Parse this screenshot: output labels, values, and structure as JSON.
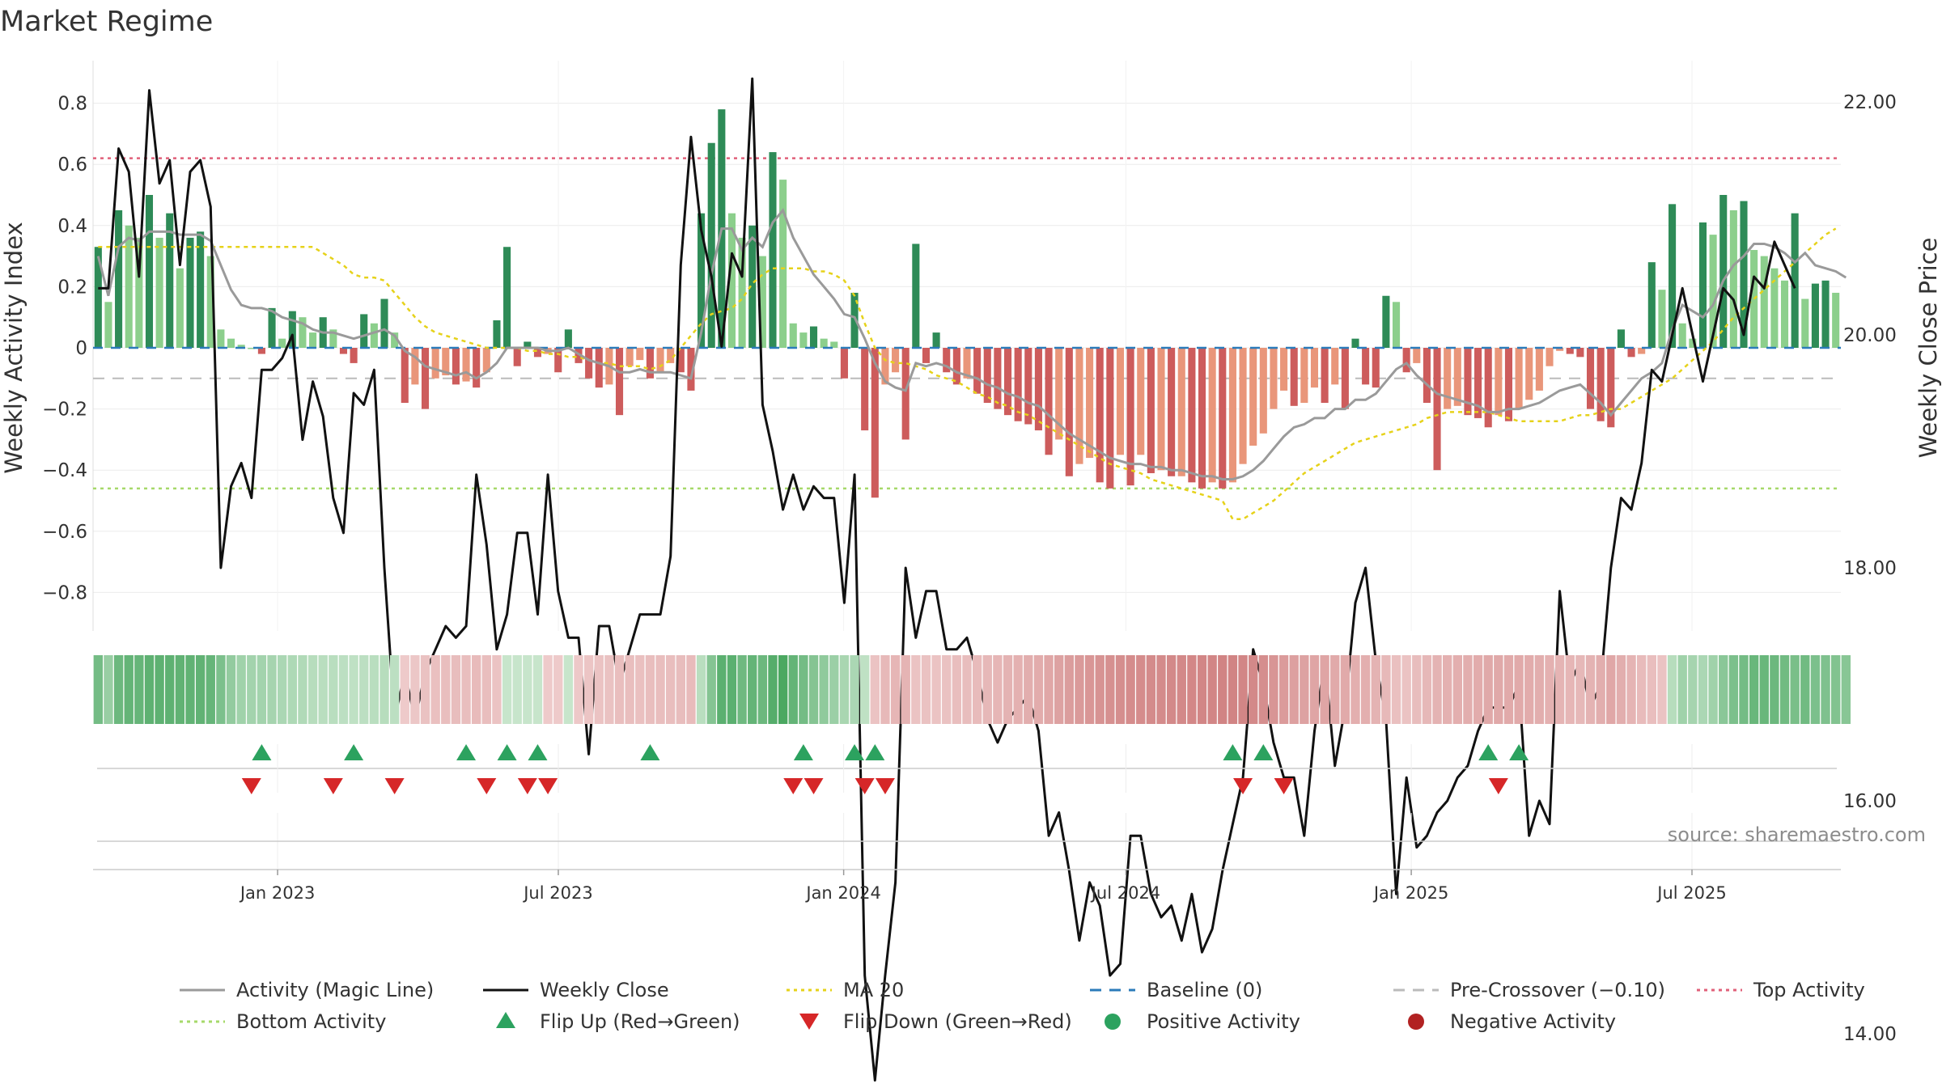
{
  "title": "Market Regime",
  "source": "source: sharemaestro.com",
  "colors": {
    "pos_dark": "#2e8b57",
    "pos_light": "#8ccf8c",
    "neg_dark": "#cd5c5c",
    "neg_light": "#e9967a",
    "magic": "#9a9a9a",
    "close": "#111111",
    "ma20": "#e6d21a",
    "baseline": "#2b7bba",
    "precross": "#bbbbbb",
    "top": "#e0607a",
    "bottom": "#a6d96a",
    "flip_up": "#2ca25f",
    "flip_down": "#d62728"
  },
  "chart_data": {
    "type": "bar",
    "ylabel": "Weekly Activity Index",
    "y2label": "Weekly Close Price",
    "ylim": [
      -0.93,
      0.93
    ],
    "y2lim": [
      13.0,
      23.0
    ],
    "yticks": [
      0.8,
      0.6,
      0.4,
      0.2,
      0,
      -0.2,
      -0.4,
      -0.6,
      -0.8
    ],
    "ytick_labels": [
      "0.8",
      "0.6",
      "0.4",
      "0.2",
      "0",
      "−0.2",
      "−0.4",
      "−0.6",
      "−0.8"
    ],
    "y2ticks": [
      22,
      20,
      18,
      16,
      14
    ],
    "y2tick_labels": [
      "22.00",
      "20.00",
      "18.00",
      "16.00",
      "14.00"
    ],
    "x_start": "2022-09-04",
    "x_end": "2025-10-05",
    "xticks": [
      "2023-01-01",
      "2023-07-01",
      "2024-01-01",
      "2024-07-01",
      "2025-01-01",
      "2025-07-01"
    ],
    "xtick_labels": [
      "Jan 2023",
      "Jul 2023",
      "Jan 2024",
      "Jul 2024",
      "Jan 2025",
      "Jul 2025"
    ],
    "levels": {
      "top": 0.62,
      "bottom": -0.46,
      "pre_crossover": -0.1,
      "baseline": 0
    },
    "grid": true,
    "legend_position": "bottom",
    "legend": [
      {
        "label": "Activity (Magic Line)",
        "style": "line",
        "color": "#9a9a9a"
      },
      {
        "label": "Weekly Close",
        "style": "line",
        "color": "#111111"
      },
      {
        "label": "MA 20",
        "style": "dotted",
        "color": "#e6d21a"
      },
      {
        "label": "Baseline (0)",
        "style": "dashed",
        "color": "#2b7bba"
      },
      {
        "label": "Pre-Crossover (−0.10)",
        "style": "dashed",
        "color": "#bbbbbb"
      },
      {
        "label": "Top Activity",
        "style": "dotted",
        "color": "#e0607a"
      },
      {
        "label": "Bottom Activity",
        "style": "dotted",
        "color": "#a6d96a"
      },
      {
        "label": "Flip Up (Red→Green)",
        "style": "tri-up",
        "color": "#2ca25f"
      },
      {
        "label": "Flip Down (Green→Red)",
        "style": "tri-down",
        "color": "#d62728"
      },
      {
        "label": "Positive Activity",
        "style": "dot",
        "color": "#2ca25f"
      },
      {
        "label": "Negative Activity",
        "style": "dot",
        "color": "#b22222"
      }
    ],
    "activity": [
      0.33,
      0.15,
      0.45,
      0.4,
      0.36,
      0.5,
      0.36,
      0.44,
      0.26,
      0.36,
      0.38,
      0.3,
      0.06,
      0.03,
      0.01,
      0.0,
      -0.02,
      0.13,
      0.03,
      0.12,
      0.1,
      0.05,
      0.1,
      0.06,
      -0.02,
      -0.05,
      0.11,
      0.08,
      0.16,
      0.05,
      -0.18,
      -0.12,
      -0.2,
      -0.1,
      -0.09,
      -0.12,
      -0.11,
      -0.13,
      -0.08,
      0.09,
      0.33,
      -0.06,
      0.02,
      -0.03,
      -0.02,
      -0.08,
      0.06,
      -0.05,
      -0.1,
      -0.13,
      -0.12,
      -0.22,
      -0.06,
      -0.04,
      -0.1,
      -0.08,
      -0.05,
      -0.08,
      -0.14,
      0.44,
      0.67,
      0.78,
      0.44,
      0.36,
      0.4,
      0.3,
      0.64,
      0.55,
      0.08,
      0.05,
      0.07,
      0.03,
      0.02,
      -0.1,
      0.18,
      -0.27,
      -0.49,
      -0.12,
      -0.08,
      -0.3,
      0.34,
      -0.05,
      0.05,
      -0.08,
      -0.12,
      -0.1,
      -0.15,
      -0.18,
      -0.2,
      -0.22,
      -0.24,
      -0.25,
      -0.27,
      -0.35,
      -0.3,
      -0.42,
      -0.38,
      -0.36,
      -0.44,
      -0.46,
      -0.35,
      -0.45,
      -0.35,
      -0.41,
      -0.4,
      -0.42,
      -0.42,
      -0.44,
      -0.46,
      -0.44,
      -0.46,
      -0.44,
      -0.38,
      -0.32,
      -0.28,
      -0.2,
      -0.14,
      -0.19,
      -0.18,
      -0.13,
      -0.18,
      -0.12,
      -0.2,
      0.03,
      -0.12,
      -0.13,
      0.17,
      0.15,
      -0.08,
      -0.05,
      -0.18,
      -0.4,
      -0.2,
      -0.19,
      -0.22,
      -0.23,
      -0.26,
      -0.22,
      -0.24,
      -0.2,
      -0.17,
      -0.14,
      -0.06,
      -0.01,
      -0.02,
      -0.03,
      -0.2,
      -0.24,
      -0.26,
      0.06,
      -0.03,
      -0.02,
      0.28,
      0.19,
      0.47,
      0.08,
      0.03,
      0.41,
      0.37,
      0.5,
      0.45,
      0.48,
      0.32,
      0.3,
      0.26,
      0.22,
      0.44,
      0.16,
      0.21,
      0.22,
      0.18
    ],
    "magic": [
      0.3,
      0.17,
      0.33,
      0.36,
      0.35,
      0.38,
      0.38,
      0.38,
      0.37,
      0.37,
      0.37,
      0.35,
      0.27,
      0.19,
      0.14,
      0.13,
      0.13,
      0.12,
      0.1,
      0.09,
      0.08,
      0.06,
      0.05,
      0.05,
      0.04,
      0.03,
      0.04,
      0.05,
      0.06,
      0.04,
      -0.01,
      -0.03,
      -0.06,
      -0.07,
      -0.08,
      -0.09,
      -0.08,
      -0.1,
      -0.08,
      -0.05,
      0.0,
      0.0,
      0.0,
      0.0,
      -0.01,
      -0.01,
      0.0,
      -0.02,
      -0.04,
      -0.05,
      -0.06,
      -0.08,
      -0.08,
      -0.07,
      -0.08,
      -0.08,
      -0.08,
      -0.09,
      -0.1,
      0.05,
      0.24,
      0.39,
      0.39,
      0.32,
      0.36,
      0.33,
      0.41,
      0.45,
      0.36,
      0.3,
      0.24,
      0.2,
      0.16,
      0.11,
      0.1,
      0.03,
      -0.05,
      -0.11,
      -0.13,
      -0.14,
      -0.05,
      -0.06,
      -0.05,
      -0.06,
      -0.08,
      -0.09,
      -0.1,
      -0.12,
      -0.13,
      -0.15,
      -0.16,
      -0.18,
      -0.19,
      -0.22,
      -0.25,
      -0.28,
      -0.3,
      -0.32,
      -0.34,
      -0.36,
      -0.37,
      -0.38,
      -0.38,
      -0.39,
      -0.39,
      -0.4,
      -0.4,
      -0.41,
      -0.42,
      -0.42,
      -0.43,
      -0.43,
      -0.42,
      -0.4,
      -0.37,
      -0.33,
      -0.29,
      -0.26,
      -0.25,
      -0.23,
      -0.23,
      -0.2,
      -0.2,
      -0.17,
      -0.17,
      -0.15,
      -0.11,
      -0.07,
      -0.05,
      -0.09,
      -0.12,
      -0.15,
      -0.16,
      -0.17,
      -0.18,
      -0.19,
      -0.21,
      -0.21,
      -0.2,
      -0.2,
      -0.19,
      -0.18,
      -0.16,
      -0.14,
      -0.13,
      -0.12,
      -0.15,
      -0.18,
      -0.22,
      -0.18,
      -0.14,
      -0.1,
      -0.08,
      -0.05,
      0.06,
      0.14,
      0.12,
      0.1,
      0.14,
      0.22,
      0.27,
      0.3,
      0.34,
      0.34,
      0.33,
      0.31,
      0.28,
      0.31,
      0.27,
      0.26,
      0.25,
      0.23
    ],
    "close": [
      20.4,
      20.4,
      21.6,
      21.4,
      20.5,
      22.1,
      21.3,
      21.5,
      20.6,
      21.4,
      21.5,
      21.1,
      18.0,
      18.7,
      18.9,
      18.6,
      19.7,
      19.7,
      19.8,
      20.0,
      19.1,
      19.6,
      19.3,
      18.6,
      18.3,
      19.5,
      19.4,
      19.7,
      18.0,
      16.7,
      17.1,
      16.7,
      17.1,
      17.3,
      17.5,
      17.4,
      17.5,
      18.8,
      18.2,
      17.3,
      17.6,
      18.3,
      18.3,
      17.6,
      18.8,
      17.8,
      17.4,
      17.4,
      16.4,
      17.5,
      17.5,
      17.0,
      17.3,
      17.6,
      17.6,
      17.6,
      18.1,
      20.6,
      21.7,
      20.9,
      20.5,
      19.9,
      20.7,
      20.5,
      22.2,
      19.4,
      19.0,
      18.5,
      18.8,
      18.5,
      18.7,
      18.6,
      18.6,
      17.7,
      18.8,
      14.5,
      13.6,
      14.5,
      15.3,
      18.0,
      17.4,
      17.8,
      17.8,
      17.3,
      17.3,
      17.4,
      17.1,
      16.7,
      16.5,
      16.7,
      16.8,
      16.9,
      16.6,
      15.7,
      15.9,
      15.4,
      14.8,
      15.3,
      15.1,
      14.5,
      14.6,
      15.7,
      15.7,
      15.2,
      15.0,
      15.1,
      14.8,
      15.2,
      14.7,
      14.9,
      15.4,
      15.8,
      16.2,
      17.3,
      17.0,
      16.5,
      16.2,
      16.2,
      15.7,
      16.6,
      17.2,
      16.3,
      16.8,
      17.7,
      18.0,
      17.2,
      16.7,
      15.2,
      16.2,
      15.6,
      15.7,
      15.9,
      16.0,
      16.2,
      16.3,
      16.6,
      16.8,
      16.8,
      16.8,
      17.0,
      15.7,
      16.0,
      15.8,
      17.8,
      17.0,
      17.2,
      16.8,
      17.0,
      18.0,
      18.6,
      18.5,
      18.9,
      19.7,
      19.6,
      20.0,
      20.4,
      20.0,
      19.6,
      20.0,
      20.4,
      20.3,
      20.0,
      20.5,
      20.4,
      20.8,
      20.6,
      20.4
    ],
    "ma20": [
      0.33,
      0.33,
      0.33,
      0.33,
      0.33,
      0.33,
      0.33,
      0.33,
      0.33,
      0.33,
      0.33,
      0.33,
      0.33,
      0.33,
      0.33,
      0.33,
      0.33,
      0.33,
      0.33,
      0.33,
      0.33,
      0.33,
      0.31,
      0.29,
      0.27,
      0.24,
      0.23,
      0.23,
      0.22,
      0.18,
      0.14,
      0.1,
      0.07,
      0.05,
      0.04,
      0.03,
      0.02,
      0.01,
      0.0,
      0.0,
      0.0,
      0.0,
      -0.01,
      -0.01,
      -0.02,
      -0.02,
      -0.03,
      -0.03,
      -0.04,
      -0.05,
      -0.05,
      -0.06,
      -0.06,
      -0.06,
      -0.07,
      -0.06,
      -0.04,
      0.0,
      0.04,
      0.08,
      0.11,
      0.12,
      0.13,
      0.16,
      0.21,
      0.24,
      0.26,
      0.26,
      0.26,
      0.26,
      0.25,
      0.25,
      0.24,
      0.22,
      0.17,
      0.08,
      0.0,
      -0.04,
      -0.05,
      -0.05,
      -0.06,
      -0.07,
      -0.09,
      -0.1,
      -0.11,
      -0.13,
      -0.15,
      -0.16,
      -0.18,
      -0.19,
      -0.21,
      -0.22,
      -0.24,
      -0.26,
      -0.28,
      -0.3,
      -0.32,
      -0.34,
      -0.36,
      -0.38,
      -0.39,
      -0.4,
      -0.41,
      -0.43,
      -0.44,
      -0.45,
      -0.46,
      -0.47,
      -0.48,
      -0.49,
      -0.5,
      -0.56,
      -0.56,
      -0.54,
      -0.52,
      -0.5,
      -0.47,
      -0.44,
      -0.41,
      -0.39,
      -0.37,
      -0.35,
      -0.33,
      -0.31,
      -0.3,
      -0.29,
      -0.28,
      -0.27,
      -0.26,
      -0.25,
      -0.23,
      -0.22,
      -0.21,
      -0.21,
      -0.21,
      -0.21,
      -0.21,
      -0.22,
      -0.23,
      -0.24,
      -0.24,
      -0.24,
      -0.24,
      -0.24,
      -0.23,
      -0.22,
      -0.22,
      -0.21,
      -0.2,
      -0.2,
      -0.18,
      -0.16,
      -0.14,
      -0.12,
      -0.1,
      -0.07,
      -0.04,
      -0.01,
      0.02,
      0.06,
      0.1,
      0.13,
      0.16,
      0.19,
      0.22,
      0.25,
      0.28,
      0.31,
      0.34,
      0.37,
      0.39
    ],
    "flip_up_weeks": [
      16,
      25,
      36,
      40,
      43,
      54,
      69,
      74,
      76,
      111,
      114,
      136,
      139
    ],
    "flip_down_weeks": [
      15,
      23,
      29,
      38,
      42,
      44,
      68,
      70,
      75,
      77,
      112,
      116,
      137
    ]
  }
}
